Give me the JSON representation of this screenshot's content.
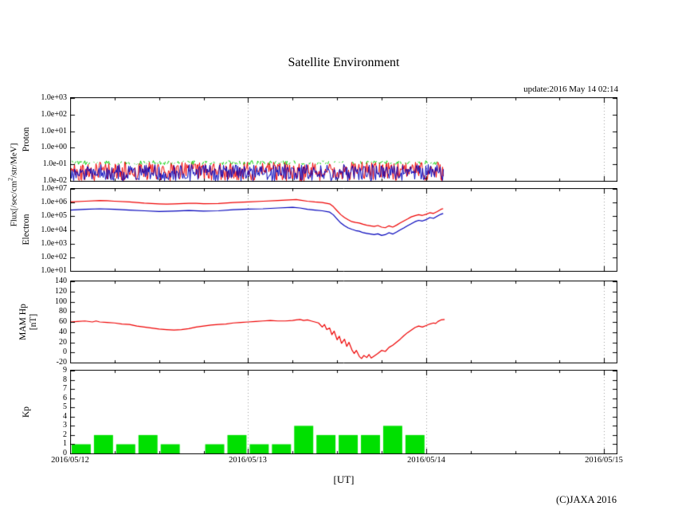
{
  "title": "Satellite Environment",
  "update_text": "update:2016 May 14 02:14",
  "copyright": "(C)JAXA 2016",
  "flux_axis_label": {
    "pre": "Flux[/sec/cm",
    "sup": "2",
    "post": "/str/MeV]"
  },
  "xaxis": {
    "label": "[UT]",
    "tick_labels": [
      "2016/05/12",
      "2016/05/13",
      "2016/05/14",
      "2016/05/15"
    ],
    "tick_hours": [
      0,
      24,
      48,
      72
    ],
    "range_hours": [
      0,
      73.8
    ]
  },
  "chart_data": [
    {
      "id": "proton",
      "type": "line",
      "ylabel": "Proton",
      "yscale": "log",
      "ylim": [
        0.01,
        1000
      ],
      "ytick_labels": [
        "1.0e+03",
        "1.0e+02",
        "1.0e+01",
        "1.0e+00",
        "1.0e-01",
        "1.0e-02"
      ],
      "ytick_values": [
        1000,
        100,
        10,
        1,
        0.1,
        0.01
      ],
      "data_end_hour": 50.3,
      "noise_series": [
        {
          "name": "proton-ch1",
          "color": "#ee0000",
          "log10_min": -2.0,
          "log10_max": -0.85,
          "density": 1
        },
        {
          "name": "proton-ch2",
          "color": "#0000bb",
          "log10_min": -2.0,
          "log10_max": -1.0,
          "density": 1
        },
        {
          "name": "proton-ch3",
          "color": "#00cc00",
          "log10_min": -1.02,
          "log10_max": -0.78,
          "density": 0.65
        }
      ]
    },
    {
      "id": "electron",
      "type": "line",
      "ylabel": "Electron",
      "yscale": "log",
      "ylim": [
        10,
        10000000
      ],
      "ytick_labels": [
        "1.0e+07",
        "1.0e+06",
        "1.0e+05",
        "1.0e+04",
        "1.0e+03",
        "1.0e+02",
        "1.0e+01"
      ],
      "ytick_values": [
        10000000,
        1000000,
        100000,
        10000,
        1000,
        100,
        10
      ],
      "series": [
        {
          "name": "electron-high",
          "color": "#ee0000",
          "points": [
            [
              0,
              1100000.0
            ],
            [
              2,
              1250000.0
            ],
            [
              4,
              1400000.0
            ],
            [
              5,
              1350000.0
            ],
            [
              6,
              1250000.0
            ],
            [
              8,
              1100000.0
            ],
            [
              9,
              1000000.0
            ],
            [
              10,
              900000.0
            ],
            [
              12,
              800000.0
            ],
            [
              13,
              760000.0
            ],
            [
              14,
              800000.0
            ],
            [
              16,
              880000.0
            ],
            [
              17,
              880000.0
            ],
            [
              18,
              820000.0
            ],
            [
              20,
              850000.0
            ],
            [
              22,
              1000000.0
            ],
            [
              24,
              1100000.0
            ],
            [
              26,
              1250000.0
            ],
            [
              28,
              1400000.0
            ],
            [
              30,
              1600000.0
            ],
            [
              30.5,
              1650000.0
            ],
            [
              31,
              1500000.0
            ],
            [
              32,
              1250000.0
            ],
            [
              33,
              1100000.0
            ],
            [
              34,
              1000000.0
            ],
            [
              35,
              800000.0
            ],
            [
              35.5,
              500000.0
            ],
            [
              36,
              250000.0
            ],
            [
              36.5,
              130000.0
            ],
            [
              37,
              80000.0
            ],
            [
              37.5,
              56000.0
            ],
            [
              38,
              40000.0
            ],
            [
              38.5,
              35000.0
            ],
            [
              39,
              32000.0
            ],
            [
              39.5,
              26000.0
            ],
            [
              40,
              22000.0
            ],
            [
              40.5,
              20000.0
            ],
            [
              41,
              18000.0
            ],
            [
              41.5,
              21000.0
            ],
            [
              42,
              16000.0
            ],
            [
              42.5,
              14500.0
            ],
            [
              43,
              20000.0
            ],
            [
              43.5,
              16000.0
            ],
            [
              44,
              22000.0
            ],
            [
              44.5,
              32000.0
            ],
            [
              45,
              45000.0
            ],
            [
              45.5,
              63000.0
            ],
            [
              46,
              90000.0
            ],
            [
              46.5,
              110000.0
            ],
            [
              47,
              130000.0
            ],
            [
              47.5,
              115000.0
            ],
            [
              48,
              140000.0
            ],
            [
              48.5,
              180000.0
            ],
            [
              49,
              160000.0
            ],
            [
              49.5,
              220000.0
            ],
            [
              50,
              320000.0
            ],
            [
              50.3,
              360000.0
            ]
          ]
        },
        {
          "name": "electron-low",
          "color": "#0000bb",
          "points": [
            [
              0,
              280000.0
            ],
            [
              2,
              320000.0
            ],
            [
              4,
              350000.0
            ],
            [
              6,
              320000.0
            ],
            [
              8,
              280000.0
            ],
            [
              10,
              250000.0
            ],
            [
              12,
              220000.0
            ],
            [
              14,
              240000.0
            ],
            [
              16,
              260000.0
            ],
            [
              18,
              240000.0
            ],
            [
              20,
              250000.0
            ],
            [
              22,
              300000.0
            ],
            [
              24,
              330000.0
            ],
            [
              26,
              350000.0
            ],
            [
              28,
              400000.0
            ],
            [
              30,
              450000.0
            ],
            [
              31,
              400000.0
            ],
            [
              32,
              320000.0
            ],
            [
              33,
              280000.0
            ],
            [
              34,
              250000.0
            ],
            [
              35,
              200000.0
            ],
            [
              35.5,
              126000.0
            ],
            [
              36,
              63000.0
            ],
            [
              36.5,
              32000.0
            ],
            [
              37,
              20000.0
            ],
            [
              37.5,
              14000.0
            ],
            [
              38,
              11000.0
            ],
            [
              38.5,
              9000.0
            ],
            [
              39,
              8000.0
            ],
            [
              39.5,
              6300.0
            ],
            [
              40,
              5600.0
            ],
            [
              40.5,
              5000.0
            ],
            [
              41,
              4500.0
            ],
            [
              41.5,
              5200.0
            ],
            [
              42,
              4000.0
            ],
            [
              42.5,
              4500.0
            ],
            [
              43,
              6300.0
            ],
            [
              43.5,
              5000.0
            ],
            [
              44,
              7000.0
            ],
            [
              44.5,
              10000.0
            ],
            [
              45,
              14000.0
            ],
            [
              45.5,
              20000.0
            ],
            [
              46,
              28000.0
            ],
            [
              46.5,
              40000.0
            ],
            [
              47,
              50000.0
            ],
            [
              47.5,
              45000.0
            ],
            [
              48,
              56000.0
            ],
            [
              48.5,
              80000.0
            ],
            [
              49,
              70000.0
            ],
            [
              49.5,
              100000.0
            ],
            [
              50,
              140000.0
            ],
            [
              50.3,
              160000.0
            ]
          ]
        }
      ]
    },
    {
      "id": "mam-hp",
      "type": "line",
      "ylabel": "MAM Hp",
      "ylabel2": "[nT]",
      "yscale": "linear",
      "ylim": [
        -20,
        140
      ],
      "ytick_labels": [
        "140",
        "120",
        "100",
        "80",
        "60",
        "40",
        "20",
        "0",
        "-20"
      ],
      "ytick_values": [
        140,
        120,
        100,
        80,
        60,
        40,
        20,
        0,
        -20
      ],
      "series": [
        {
          "name": "hp",
          "color": "#ee0000",
          "points": [
            [
              0,
              60
            ],
            [
              1,
              61
            ],
            [
              2,
              62
            ],
            [
              3,
              60
            ],
            [
              3.5,
              62
            ],
            [
              4,
              60
            ],
            [
              5,
              59
            ],
            [
              6,
              58
            ],
            [
              7,
              56
            ],
            [
              8,
              55
            ],
            [
              9,
              52
            ],
            [
              10,
              50
            ],
            [
              11,
              48
            ],
            [
              12,
              46
            ],
            [
              13,
              45
            ],
            [
              14,
              44
            ],
            [
              15,
              45
            ],
            [
              16,
              47
            ],
            [
              17,
              50
            ],
            [
              18,
              52
            ],
            [
              19,
              54
            ],
            [
              20,
              55
            ],
            [
              21,
              56
            ],
            [
              22,
              58
            ],
            [
              23,
              59
            ],
            [
              24,
              60
            ],
            [
              25,
              61
            ],
            [
              26,
              62
            ],
            [
              27,
              63
            ],
            [
              28,
              62
            ],
            [
              29,
              62
            ],
            [
              30,
              63
            ],
            [
              30.5,
              64
            ],
            [
              31,
              65
            ],
            [
              31.5,
              63
            ],
            [
              32,
              64
            ],
            [
              32.5,
              62
            ],
            [
              33,
              60
            ],
            [
              33.5,
              58
            ],
            [
              34,
              50
            ],
            [
              34.3,
              55
            ],
            [
              34.6,
              45
            ],
            [
              35,
              48
            ],
            [
              35.3,
              35
            ],
            [
              35.6,
              42
            ],
            [
              36,
              25
            ],
            [
              36.3,
              32
            ],
            [
              36.6,
              18
            ],
            [
              37,
              26
            ],
            [
              37.3,
              12
            ],
            [
              37.6,
              20
            ],
            [
              38,
              5
            ],
            [
              38.3,
              -2
            ],
            [
              38.6,
              4
            ],
            [
              39,
              -8
            ],
            [
              39.3,
              -12
            ],
            [
              39.6,
              -6
            ],
            [
              40,
              -10
            ],
            [
              40.3,
              -4
            ],
            [
              40.6,
              -11
            ],
            [
              41,
              -7
            ],
            [
              41.5,
              -2
            ],
            [
              42,
              4
            ],
            [
              42.5,
              2
            ],
            [
              43,
              10
            ],
            [
              43.5,
              14
            ],
            [
              44,
              20
            ],
            [
              44.5,
              26
            ],
            [
              45,
              33
            ],
            [
              45.5,
              39
            ],
            [
              46,
              44
            ],
            [
              46.5,
              49
            ],
            [
              47,
              52
            ],
            [
              47.5,
              50
            ],
            [
              48,
              53
            ],
            [
              48.5,
              56
            ],
            [
              49,
              58
            ],
            [
              49.3,
              57
            ],
            [
              49.6,
              61
            ],
            [
              50,
              64
            ],
            [
              50.5,
              65
            ]
          ]
        }
      ]
    },
    {
      "id": "kp",
      "type": "bar",
      "ylabel": "Kp",
      "yscale": "linear",
      "ylim": [
        0,
        9
      ],
      "ytick_labels": [
        "9",
        "8",
        "7",
        "6",
        "5",
        "4",
        "3",
        "2",
        "1",
        "0"
      ],
      "ytick_values": [
        9,
        8,
        7,
        6,
        5,
        4,
        3,
        2,
        1,
        0
      ],
      "bar_color": "#00e000",
      "bar_interval_hours": 3,
      "values": [
        1,
        2,
        1,
        2,
        1,
        0,
        1,
        2,
        1,
        1,
        3,
        2,
        2,
        2,
        3,
        2
      ]
    }
  ]
}
